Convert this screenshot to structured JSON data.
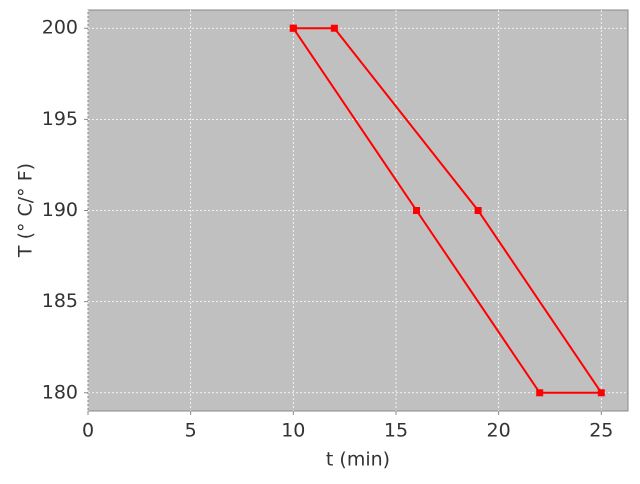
{
  "chart_data": {
    "type": "line",
    "x_label": "t (min)",
    "y_label": "T (° C/° F)",
    "x": [
      10,
      12,
      19,
      25,
      22,
      16,
      10
    ],
    "series": [
      {
        "color": "#ff0000",
        "values": [
          200,
          200,
          190,
          180,
          180,
          190,
          200
        ]
      }
    ],
    "xlim": [
      0,
      26.3
    ],
    "ylim": [
      179,
      201
    ],
    "xticks": [
      0,
      5,
      10,
      15,
      20,
      25
    ],
    "yticks": [
      180,
      185,
      190,
      195,
      200
    ],
    "grid": true,
    "background": "#c0c0c0"
  }
}
